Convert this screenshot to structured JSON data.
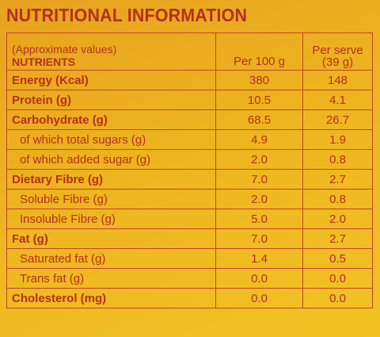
{
  "title": "NUTRITIONAL INFORMATION",
  "header": {
    "note": "(Approximate values)",
    "nutrients": "NUTRIENTS",
    "per_100g": "Per 100 g",
    "per_serve": [
      "Per serve",
      "(39 g)"
    ]
  },
  "rows": [
    {
      "name": "Energy (Kcal)",
      "per_100g": "380",
      "per_serve": "148",
      "bold": true
    },
    {
      "name": "Protein (g)",
      "per_100g": "10.5",
      "per_serve": "4.1",
      "bold": true
    },
    {
      "name": "Carbohydrate (g)",
      "per_100g": "68.5",
      "per_serve": "26.7",
      "bold": true
    },
    {
      "name": "of which total sugars (g)",
      "per_100g": "4.9",
      "per_serve": "1.9",
      "bold": false
    },
    {
      "name": "of which added sugar (g)",
      "per_100g": "2.0",
      "per_serve": "0.8",
      "bold": false
    },
    {
      "name": "Dietary Fibre (g)",
      "per_100g": "7.0",
      "per_serve": "2.7",
      "bold": true
    },
    {
      "name": "Soluble Fibre (g)",
      "per_100g": "2.0",
      "per_serve": "0.8",
      "bold": false
    },
    {
      "name": "Insoluble Fibre (g)",
      "per_100g": "5.0",
      "per_serve": "2.0",
      "bold": false
    },
    {
      "name": "Fat (g)",
      "per_100g": "7.0",
      "per_serve": "2.7",
      "bold": true
    },
    {
      "name": "Saturated fat (g)",
      "per_100g": "1.4",
      "per_serve": "0.5",
      "bold": false
    },
    {
      "name": "Trans fat (g)",
      "per_100g": "0.0",
      "per_serve": "0.0",
      "bold": false
    },
    {
      "name": "Cholesterol (mg)",
      "per_100g": "0.0",
      "per_serve": "0.0",
      "bold": true
    }
  ]
}
